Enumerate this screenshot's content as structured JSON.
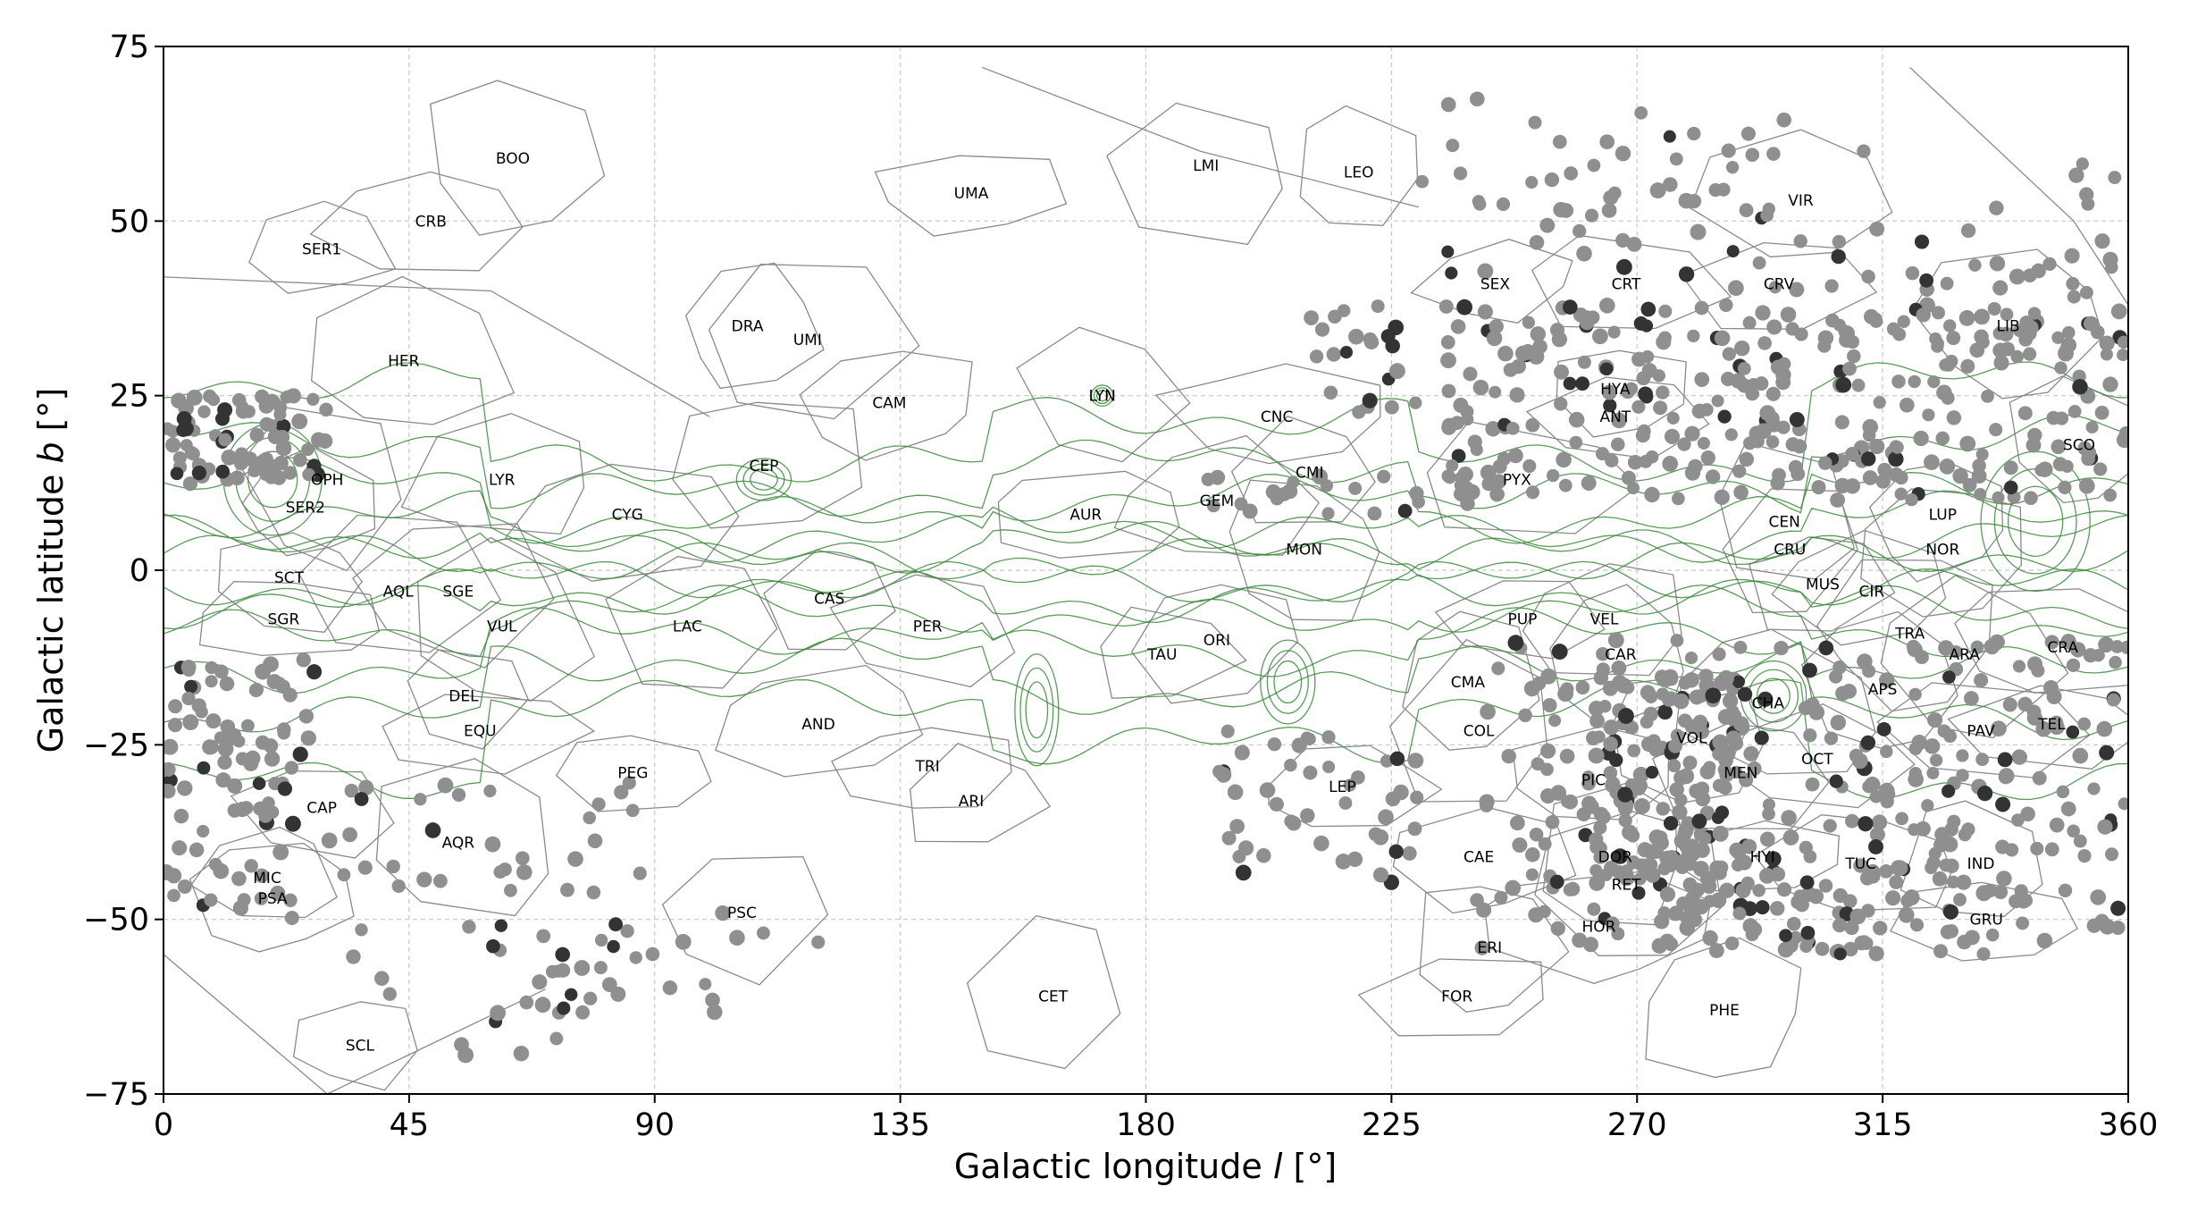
{
  "chart_data": {
    "type": "scatter",
    "title": "",
    "xlabel": "Galactic longitude",
    "xlabel_symbol": "l",
    "xlabel_unit": "[°]",
    "ylabel": "Galactic latitude",
    "ylabel_symbol": "b",
    "ylabel_unit": "[°]",
    "xlim": [
      0,
      360
    ],
    "ylim": [
      -75,
      75
    ],
    "xticks": [
      0,
      45,
      90,
      135,
      180,
      225,
      270,
      315,
      360
    ],
    "yticks": [
      75,
      50,
      25,
      0,
      -25,
      -50,
      -75
    ],
    "grid": true,
    "contour_color": "#3d8a3d",
    "field_color": "#8f8f8f",
    "boundary_color": "#8a8a8a",
    "constellations": [
      {
        "name": "BOO",
        "l": 64,
        "b": 59
      },
      {
        "name": "CRB",
        "l": 49,
        "b": 50
      },
      {
        "name": "SER1",
        "l": 29,
        "b": 46
      },
      {
        "name": "HER",
        "l": 44,
        "b": 30
      },
      {
        "name": "UMA",
        "l": 148,
        "b": 54
      },
      {
        "name": "LMI",
        "l": 191,
        "b": 58
      },
      {
        "name": "LEO",
        "l": 219,
        "b": 57
      },
      {
        "name": "VIR",
        "l": 300,
        "b": 53
      },
      {
        "name": "DRA",
        "l": 107,
        "b": 35
      },
      {
        "name": "UMI",
        "l": 118,
        "b": 33
      },
      {
        "name": "SEX",
        "l": 244,
        "b": 41
      },
      {
        "name": "CRT",
        "l": 268,
        "b": 41
      },
      {
        "name": "CRV",
        "l": 296,
        "b": 41
      },
      {
        "name": "LIB",
        "l": 338,
        "b": 35
      },
      {
        "name": "CAM",
        "l": 133,
        "b": 24
      },
      {
        "name": "LYN",
        "l": 172,
        "b": 25
      },
      {
        "name": "CNC",
        "l": 204,
        "b": 22
      },
      {
        "name": "HYA",
        "l": 266,
        "b": 26
      },
      {
        "name": "ANT",
        "l": 266,
        "b": 22
      },
      {
        "name": "SCO",
        "l": 351,
        "b": 18
      },
      {
        "name": "OPH",
        "l": 30,
        "b": 13
      },
      {
        "name": "LYR",
        "l": 62,
        "b": 13
      },
      {
        "name": "CEP",
        "l": 110,
        "b": 15
      },
      {
        "name": "CMI",
        "l": 210,
        "b": 14
      },
      {
        "name": "PYX",
        "l": 248,
        "b": 13
      },
      {
        "name": "GEM",
        "l": 193,
        "b": 10
      },
      {
        "name": "SER2",
        "l": 26,
        "b": 9
      },
      {
        "name": "CYG",
        "l": 85,
        "b": 8
      },
      {
        "name": "AUR",
        "l": 169,
        "b": 8
      },
      {
        "name": "CEN",
        "l": 297,
        "b": 7
      },
      {
        "name": "LUP",
        "l": 326,
        "b": 8
      },
      {
        "name": "NOR",
        "l": 326,
        "b": 3
      },
      {
        "name": "MON",
        "l": 209,
        "b": 3
      },
      {
        "name": "CRU",
        "l": 298,
        "b": 3
      },
      {
        "name": "SCT",
        "l": 23,
        "b": -1
      },
      {
        "name": "AQL",
        "l": 43,
        "b": -3
      },
      {
        "name": "SGE",
        "l": 54,
        "b": -3
      },
      {
        "name": "MUS",
        "l": 304,
        "b": -2
      },
      {
        "name": "CIR",
        "l": 313,
        "b": -3
      },
      {
        "name": "CAS",
        "l": 122,
        "b": -4
      },
      {
        "name": "PUP",
        "l": 249,
        "b": -7
      },
      {
        "name": "VEL",
        "l": 264,
        "b": -7
      },
      {
        "name": "SGR",
        "l": 22,
        "b": -7
      },
      {
        "name": "VUL",
        "l": 62,
        "b": -8
      },
      {
        "name": "LAC",
        "l": 96,
        "b": -8
      },
      {
        "name": "PER",
        "l": 140,
        "b": -8
      },
      {
        "name": "TRA",
        "l": 320,
        "b": -9
      },
      {
        "name": "ORI",
        "l": 193,
        "b": -10
      },
      {
        "name": "CAR",
        "l": 267,
        "b": -12
      },
      {
        "name": "ARA",
        "l": 330,
        "b": -12
      },
      {
        "name": "CRA",
        "l": 348,
        "b": -11
      },
      {
        "name": "TAU",
        "l": 183,
        "b": -12
      },
      {
        "name": "CMA",
        "l": 239,
        "b": -16
      },
      {
        "name": "APS",
        "l": 315,
        "b": -17
      },
      {
        "name": "DEL",
        "l": 55,
        "b": -18
      },
      {
        "name": "CHA",
        "l": 294,
        "b": -19
      },
      {
        "name": "EQU",
        "l": 58,
        "b": -23
      },
      {
        "name": "AND",
        "l": 120,
        "b": -22
      },
      {
        "name": "COL",
        "l": 241,
        "b": -23
      },
      {
        "name": "PAV",
        "l": 333,
        "b": -23
      },
      {
        "name": "TEL",
        "l": 346,
        "b": -22
      },
      {
        "name": "VOL",
        "l": 280,
        "b": -24
      },
      {
        "name": "TRI",
        "l": 140,
        "b": -28
      },
      {
        "name": "OCT",
        "l": 303,
        "b": -27
      },
      {
        "name": "PEG",
        "l": 86,
        "b": -29
      },
      {
        "name": "PIC",
        "l": 262,
        "b": -30
      },
      {
        "name": "MEN",
        "l": 289,
        "b": -29
      },
      {
        "name": "LEP",
        "l": 216,
        "b": -31
      },
      {
        "name": "ARI",
        "l": 148,
        "b": -33
      },
      {
        "name": "CAP",
        "l": 29,
        "b": -34
      },
      {
        "name": "AQR",
        "l": 54,
        "b": -39
      },
      {
        "name": "CAE",
        "l": 241,
        "b": -41
      },
      {
        "name": "DOR",
        "l": 266,
        "b": -41
      },
      {
        "name": "HYI",
        "l": 293,
        "b": -41
      },
      {
        "name": "TUC",
        "l": 311,
        "b": -42
      },
      {
        "name": "IND",
        "l": 333,
        "b": -42
      },
      {
        "name": "MIC",
        "l": 19,
        "b": -44
      },
      {
        "name": "RET",
        "l": 268,
        "b": -45
      },
      {
        "name": "PSA",
        "l": 20,
        "b": -47
      },
      {
        "name": "PSC",
        "l": 106,
        "b": -49
      },
      {
        "name": "HOR",
        "l": 263,
        "b": -51
      },
      {
        "name": "GRU",
        "l": 334,
        "b": -50
      },
      {
        "name": "ERI",
        "l": 243,
        "b": -54
      },
      {
        "name": "CET",
        "l": 163,
        "b": -61
      },
      {
        "name": "FOR",
        "l": 237,
        "b": -61
      },
      {
        "name": "PHE",
        "l": 286,
        "b": -63
      },
      {
        "name": "SCL",
        "l": 36,
        "b": -68
      }
    ]
  }
}
